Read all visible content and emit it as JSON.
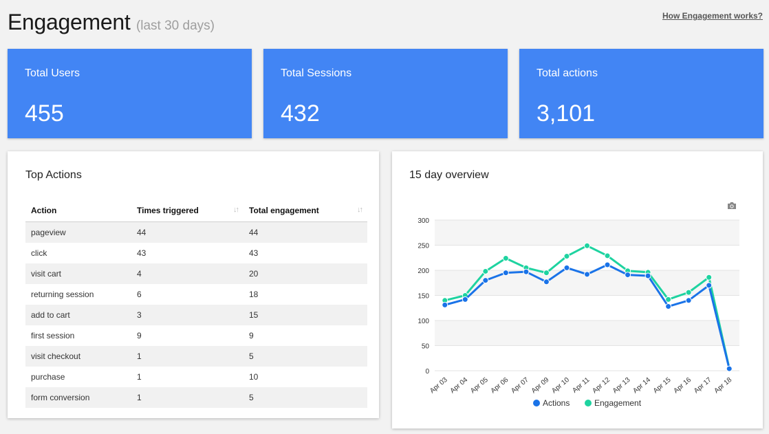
{
  "header": {
    "title": "Engagement",
    "subtitle": "(last 30 days)",
    "help_link": "How Engagement works?"
  },
  "stats": [
    {
      "label": "Total Users",
      "value": "455"
    },
    {
      "label": "Total Sessions",
      "value": "432"
    },
    {
      "label": "Total actions",
      "value": "3,101"
    }
  ],
  "top_actions": {
    "title": "Top Actions",
    "columns": [
      "Action",
      "Times triggered",
      "Total engagement"
    ],
    "rows": [
      [
        "pageview",
        "44",
        "44"
      ],
      [
        "click",
        "43",
        "43"
      ],
      [
        "visit cart",
        "4",
        "20"
      ],
      [
        "returning session",
        "6",
        "18"
      ],
      [
        "add to cart",
        "3",
        "15"
      ],
      [
        "first session",
        "9",
        "9"
      ],
      [
        "visit checkout",
        "1",
        "5"
      ],
      [
        "purchase",
        "1",
        "10"
      ],
      [
        "form conversion",
        "1",
        "5"
      ]
    ]
  },
  "overview": {
    "title": "15 day overview",
    "camera_icon": "camera-icon",
    "chart_data": {
      "type": "line",
      "x": [
        "Apr 03",
        "Apr 04",
        "Apr 05",
        "Apr 06",
        "Apr 07",
        "Apr 09",
        "Apr 10",
        "Apr 11",
        "Apr 12",
        "Apr 13",
        "Apr 14",
        "Apr 15",
        "Apr 16",
        "Apr 17",
        "Apr 18"
      ],
      "yticks": [
        0,
        50,
        100,
        150,
        200,
        250,
        300
      ],
      "ylim": [
        0,
        300
      ],
      "grid": true,
      "legend": "bottom",
      "series": [
        {
          "name": "Actions",
          "color": "#1a73e8",
          "values": [
            131,
            142,
            180,
            195,
            197,
            177,
            205,
            192,
            211,
            191,
            189,
            128,
            140,
            170,
            4
          ]
        },
        {
          "name": "Engagement",
          "color": "#1ed3a0",
          "values": [
            140,
            150,
            198,
            224,
            205,
            195,
            228,
            249,
            229,
            199,
            196,
            142,
            156,
            186,
            5
          ]
        }
      ]
    }
  }
}
